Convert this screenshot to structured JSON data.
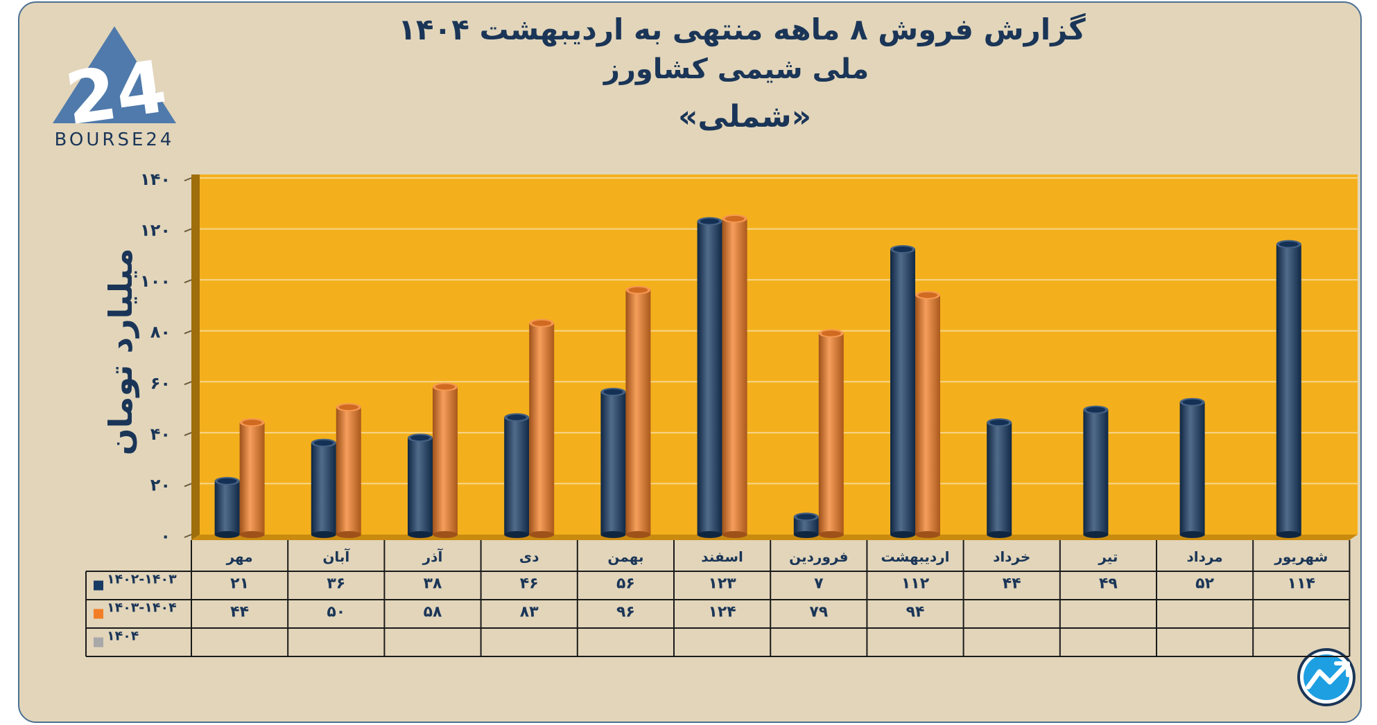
{
  "title": {
    "line1": "گزارش  فروش ۸ ماهه منتهی به اردیبهشت ۱۴۰۴",
    "line2": "ملی شیمی کشاورز",
    "line3": "«شملی»"
  },
  "logo": {
    "text": "BOURSE24",
    "mark": "24"
  },
  "icons": {
    "badge": "trend-arrow-icon",
    "logo": "bourse24-triangle-icon"
  },
  "colors": {
    "plot_bg": "#f4b01c",
    "navy": "#173a64",
    "orange": "#f37d26",
    "gray": "#a8a8a8",
    "text": "#1a3557"
  },
  "chart_data": {
    "type": "bar",
    "ylabel": "میلیارد تومان",
    "ylim": [
      0,
      140
    ],
    "yticks": [
      "۰",
      "۲۰",
      "۴۰",
      "۶۰",
      "۸۰",
      "۱۰۰",
      "۱۲۰",
      "۱۴۰"
    ],
    "grid": true,
    "categories": [
      "مهر",
      "آبان",
      "آذر",
      "دی",
      "بهمن",
      "اسفند",
      "فروردین",
      "اردیبهشت",
      "خرداد",
      "تیر",
      "مرداد",
      "شهریور"
    ],
    "series": [
      {
        "name": "۱۴۰۲-۱۴۰۳",
        "color": "#173a64",
        "values": [
          21,
          36,
          38,
          46,
          56,
          123,
          7,
          112,
          44,
          49,
          52,
          114
        ],
        "labels": [
          "۲۱",
          "۳۶",
          "۳۸",
          "۴۶",
          "۵۶",
          "۱۲۳",
          "۷",
          "۱۱۲",
          "۴۴",
          "۴۹",
          "۵۲",
          "۱۱۴"
        ]
      },
      {
        "name": "۱۴۰۳-۱۴۰۴",
        "color": "#f37d26",
        "values": [
          44,
          50,
          58,
          83,
          96,
          124,
          79,
          94,
          null,
          null,
          null,
          null
        ],
        "labels": [
          "۴۴",
          "۵۰",
          "۵۸",
          "۸۳",
          "۹۶",
          "۱۲۴",
          "۷۹",
          "۹۴",
          "",
          "",
          "",
          ""
        ]
      },
      {
        "name": "۱۴۰۴",
        "color": "#a8a8a8",
        "values": [
          null,
          null,
          null,
          null,
          null,
          null,
          null,
          null,
          null,
          null,
          null,
          null
        ],
        "labels": [
          "",
          "",
          "",
          "",
          "",
          "",
          "",
          "",
          "",
          "",
          "",
          ""
        ]
      }
    ]
  }
}
